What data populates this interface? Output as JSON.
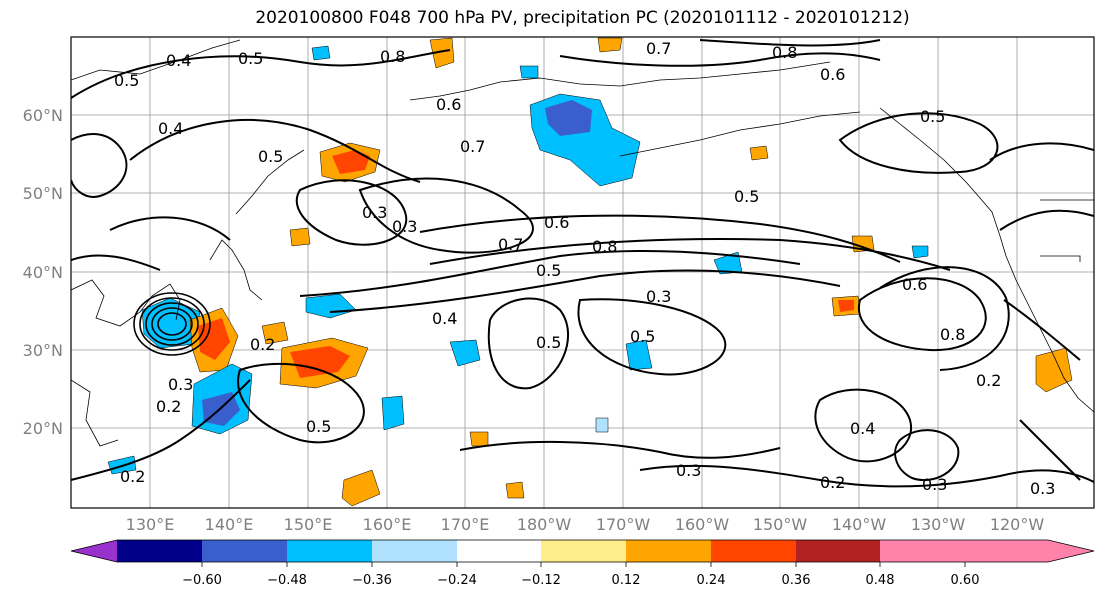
{
  "title": "2020100800 F048 700 hPa PV, precipitation PC (2020101112 - 2020101212)",
  "map": {
    "lat_labels": [
      "60°N",
      "50°N",
      "40°N",
      "30°N",
      "20°N"
    ],
    "lon_labels": [
      "130°E",
      "140°E",
      "150°E",
      "160°E",
      "170°E",
      "180°W",
      "170°W",
      "160°W",
      "150°W",
      "140°W",
      "130°W",
      "120°W"
    ],
    "grid": true,
    "variable_contours": "700 hPa PV",
    "variable_shading": "precipitation PC",
    "contour_labels": [
      "0.4",
      "0.5",
      "0.6",
      "0.8",
      "0.7",
      "0.8",
      "0.5",
      "0.6",
      "0.7",
      "0.4",
      "0.3",
      "0.3",
      "0.5",
      "0.5",
      "0.7",
      "0.6",
      "0.8",
      "0.5",
      "0.3",
      "0.4",
      "0.5",
      "0.5",
      "0.2",
      "0.3",
      "0.2",
      "0.5",
      "0.3",
      "0.2",
      "0.4",
      "0.3",
      "0.2",
      "0.3",
      "0.8",
      "0.6",
      "0.5",
      "0.2"
    ]
  },
  "colorbar": {
    "ticks": [
      "−0.60",
      "−0.48",
      "−0.36",
      "−0.24",
      "−0.12",
      "0.12",
      "0.24",
      "0.36",
      "0.48",
      "0.60"
    ],
    "colors": [
      "#9932cc",
      "#00008b",
      "#3a5fcd",
      "#00bfff",
      "#b0e2ff",
      "#ffffff",
      "#ffec8b",
      "#ffa500",
      "#ff4500",
      "#b22222",
      "#ff82ab"
    ],
    "extend": "both"
  }
}
